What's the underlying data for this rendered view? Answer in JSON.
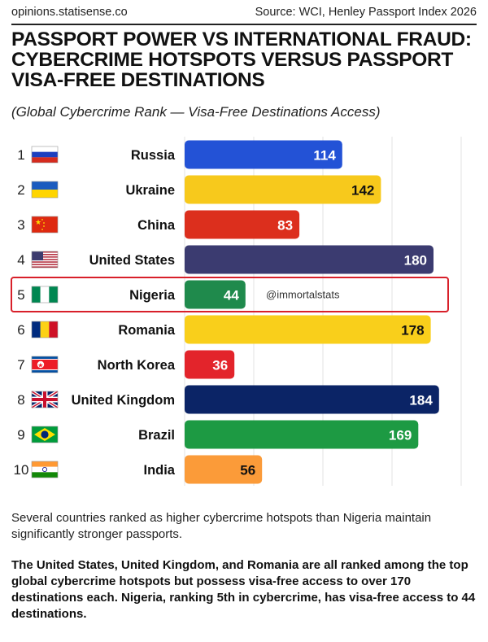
{
  "header": {
    "site": "opinions.statisense.co",
    "source": "Source: WCI, Henley Passport Index 2026"
  },
  "chart_data": {
    "type": "bar",
    "orientation": "horizontal",
    "title": "PASSPORT POWER VS INTERNATIONAL FRAUD: CYBERCRIME HOTSPOTS VERSUS PASSPORT VISA-FREE DESTINATIONS",
    "subtitle": "(Global Cybercrime Rank — Visa-Free Destinations Access)",
    "xlim": [
      0,
      200
    ],
    "grid": true,
    "ranks": [
      "1",
      "2",
      "3",
      "4",
      "5",
      "6",
      "7",
      "8",
      "9",
      "10"
    ],
    "categories": [
      "Russia",
      "Ukraine",
      "China",
      "United States",
      "Nigeria",
      "Romania",
      "North Korea",
      "United Kingdom",
      "Brazil",
      "India"
    ],
    "values": [
      114,
      142,
      83,
      180,
      44,
      178,
      36,
      184,
      169,
      56
    ],
    "colors": [
      "#2352d6",
      "#f7c91c",
      "#dc2f1d",
      "#3b3b70",
      "#1f8a4c",
      "#f9cf1b",
      "#e3242b",
      "#0b2466",
      "#1d9a43",
      "#fb9b39"
    ],
    "label_colors": [
      "#ffffff",
      "#111111",
      "#ffffff",
      "#ffffff",
      "#ffffff",
      "#111111",
      "#ffffff",
      "#ffffff",
      "#ffffff",
      "#111111"
    ],
    "flags": [
      "russia-flag",
      "ukraine-flag",
      "china-flag",
      "usa-flag",
      "nigeria-flag",
      "romania-flag",
      "north-korea-flag",
      "uk-flag",
      "brazil-flag",
      "india-flag"
    ],
    "highlight": "Nigeria",
    "highlight_color": "#d8202a",
    "watermark": "@immortalstats"
  },
  "notes": {
    "p1": "Several countries ranked as higher cybercrime hotspots than Nigeria maintain significantly stronger passports.",
    "p2": "The United States, United Kingdom, and Romania are all ranked among the top global cybercrime hotspots but possess visa-free access to over 170 destinations each. Nigeria, ranking 5th in cybercrime, has visa-free access to 44 destinations."
  }
}
